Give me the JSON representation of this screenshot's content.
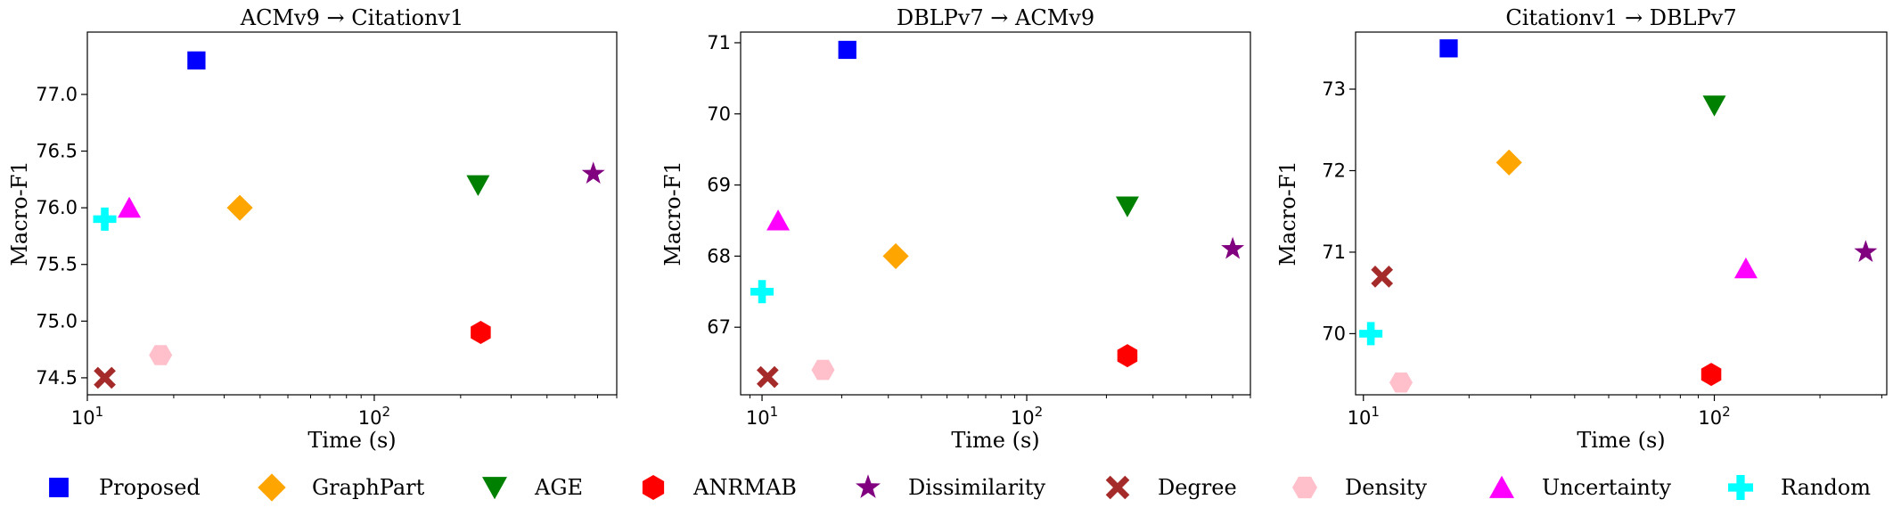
{
  "chart_data": [
    {
      "type": "scatter",
      "title": "ACMv9 → Citationv1",
      "xlabel": "Time (s)",
      "ylabel": "Macro-F1",
      "xscale": "log",
      "xlim": [
        10,
        700
      ],
      "ylim": [
        74.35,
        77.55
      ],
      "yticks": [
        "74.5",
        "75.0",
        "75.5",
        "76.0",
        "76.5",
        "77.0"
      ],
      "points": [
        {
          "method": "Proposed",
          "x": 24,
          "y": 77.3
        },
        {
          "method": "GraphPart",
          "x": 34,
          "y": 76.0
        },
        {
          "method": "AGE",
          "x": 230,
          "y": 76.2
        },
        {
          "method": "ANRMAB",
          "x": 235,
          "y": 74.9
        },
        {
          "method": "Dissimilarity",
          "x": 580,
          "y": 76.3
        },
        {
          "method": "Degree",
          "x": 11.5,
          "y": 74.5
        },
        {
          "method": "Density",
          "x": 18,
          "y": 74.7
        },
        {
          "method": "Uncertainty",
          "x": 14,
          "y": 76.0
        },
        {
          "method": "Random",
          "x": 11.5,
          "y": 75.9
        }
      ]
    },
    {
      "type": "scatter",
      "title": "DBLPv7 → ACMv9",
      "xlabel": "Time (s)",
      "ylabel": "Macro-F1",
      "xscale": "log",
      "xlim": [
        8.3,
        700
      ],
      "ylim": [
        66.05,
        71.15
      ],
      "yticks": [
        "67",
        "68",
        "69",
        "70",
        "71"
      ],
      "points": [
        {
          "method": "Proposed",
          "x": 21,
          "y": 70.9
        },
        {
          "method": "GraphPart",
          "x": 32,
          "y": 68.0
        },
        {
          "method": "AGE",
          "x": 240,
          "y": 68.7
        },
        {
          "method": "ANRMAB",
          "x": 240,
          "y": 66.6
        },
        {
          "method": "Dissimilarity",
          "x": 600,
          "y": 68.1
        },
        {
          "method": "Degree",
          "x": 10.5,
          "y": 66.3
        },
        {
          "method": "Density",
          "x": 17,
          "y": 66.4
        },
        {
          "method": "Uncertainty",
          "x": 11.5,
          "y": 68.5
        },
        {
          "method": "Random",
          "x": 10,
          "y": 67.5
        }
      ]
    },
    {
      "type": "scatter",
      "title": "Citationv1 → DBLPv7",
      "xlabel": "Time (s)",
      "ylabel": "Macro-F1",
      "xscale": "log",
      "xlim": [
        9.5,
        310
      ],
      "ylim": [
        69.25,
        73.7
      ],
      "yticks": [
        "70",
        "71",
        "72",
        "73"
      ],
      "points": [
        {
          "method": "Proposed",
          "x": 17.5,
          "y": 73.5
        },
        {
          "method": "GraphPart",
          "x": 26,
          "y": 72.1
        },
        {
          "method": "AGE",
          "x": 100,
          "y": 72.8
        },
        {
          "method": "ANRMAB",
          "x": 98,
          "y": 69.5
        },
        {
          "method": "Dissimilarity",
          "x": 270,
          "y": 71.0
        },
        {
          "method": "Degree",
          "x": 11.3,
          "y": 70.7
        },
        {
          "method": "Density",
          "x": 12.8,
          "y": 69.4
        },
        {
          "method": "Uncertainty",
          "x": 123,
          "y": 70.8
        },
        {
          "method": "Random",
          "x": 10.5,
          "y": 70.0
        }
      ]
    }
  ],
  "legend": [
    {
      "name": "Proposed",
      "marker": "square",
      "color": "#0000ff"
    },
    {
      "name": "GraphPart",
      "marker": "diamond",
      "color": "#ffa500"
    },
    {
      "name": "AGE",
      "marker": "triangle-down",
      "color": "#008000"
    },
    {
      "name": "ANRMAB",
      "marker": "hexagon",
      "color": "#ff0000"
    },
    {
      "name": "Dissimilarity",
      "marker": "star",
      "color": "#800080"
    },
    {
      "name": "Degree",
      "marker": "x",
      "color": "#a52a2a"
    },
    {
      "name": "Density",
      "marker": "hexagon-flat",
      "color": "#ffc0cb"
    },
    {
      "name": "Uncertainty",
      "marker": "triangle-up",
      "color": "#ff00ff"
    },
    {
      "name": "Random",
      "marker": "plus",
      "color": "#00ffff"
    }
  ]
}
